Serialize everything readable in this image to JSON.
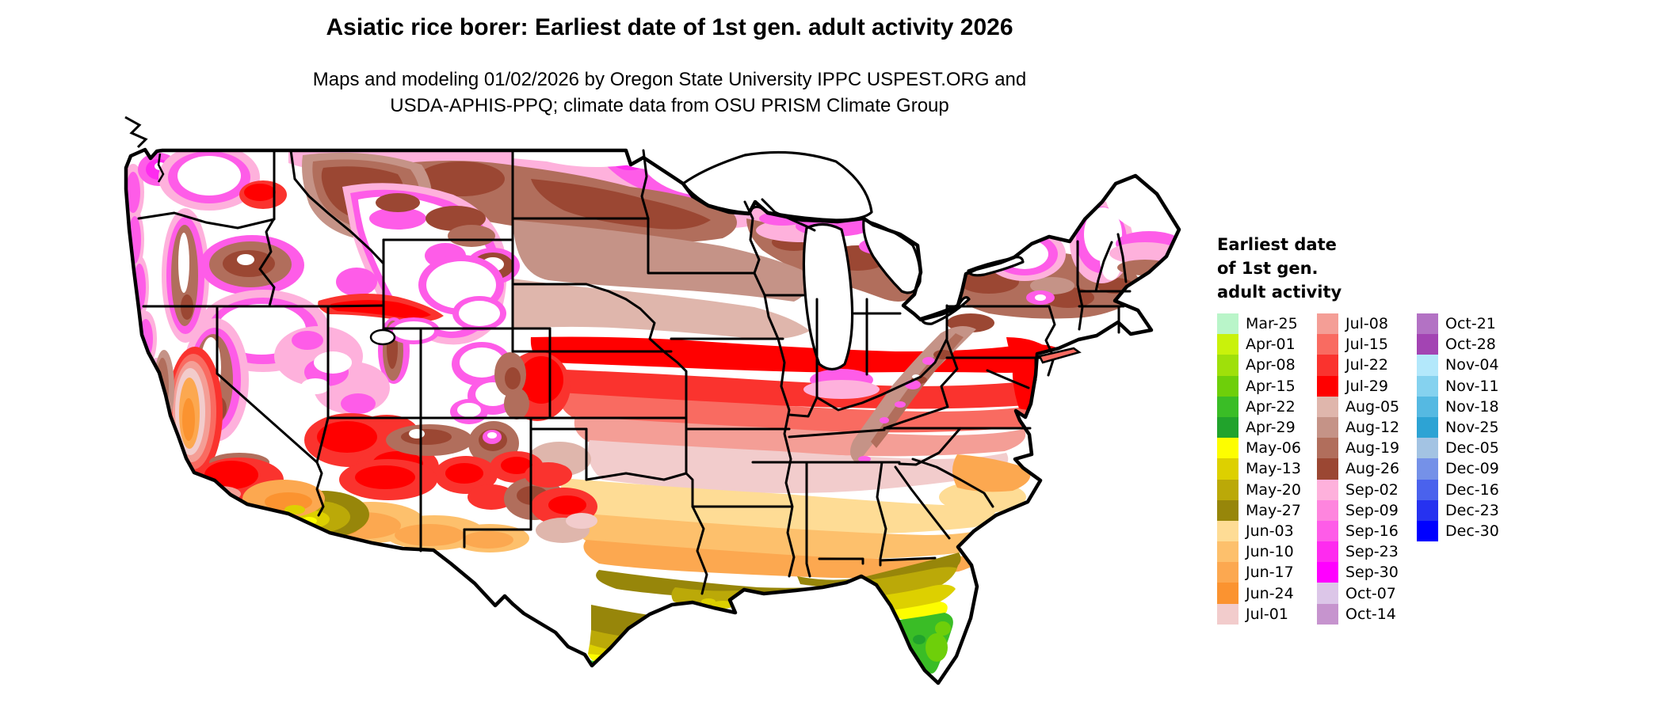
{
  "header": {
    "title": "Asiatic rice borer: Earliest date of 1st gen. adult activity 2026",
    "subtitle_line1": "Maps and modeling 01/02/2026 by Oregon State University IPPC USPEST.ORG and",
    "subtitle_line2": "USDA-APHIS-PPQ; climate data from OSU PRISM Climate Group"
  },
  "legend": {
    "title_lines": [
      "Earliest date",
      "of 1st gen.",
      "adult activity"
    ],
    "columns": [
      {
        "entries": [
          {
            "label": "Mar-25",
            "color": "#b9f5c9"
          },
          {
            "label": "Apr-01",
            "color": "#c9f20b"
          },
          {
            "label": "Apr-08",
            "color": "#9fe00a"
          },
          {
            "label": "Apr-15",
            "color": "#6ecf0a"
          },
          {
            "label": "Apr-22",
            "color": "#3abd26"
          },
          {
            "label": "Apr-29",
            "color": "#21a32c"
          },
          {
            "label": "May-06",
            "color": "#fdfd00"
          },
          {
            "label": "May-13",
            "color": "#ddd000"
          },
          {
            "label": "May-20",
            "color": "#bba908"
          },
          {
            "label": "May-27",
            "color": "#97860a"
          },
          {
            "label": "Jun-03",
            "color": "#fedc95"
          },
          {
            "label": "Jun-10",
            "color": "#fdc06c"
          },
          {
            "label": "Jun-17",
            "color": "#fca850"
          },
          {
            "label": "Jun-24",
            "color": "#fb9330"
          },
          {
            "label": "Jul-01",
            "color": "#f2cccc"
          }
        ]
      },
      {
        "entries": [
          {
            "label": "Jul-08",
            "color": "#f49e96"
          },
          {
            "label": "Jul-15",
            "color": "#f96b61"
          },
          {
            "label": "Jul-22",
            "color": "#fa332e"
          },
          {
            "label": "Jul-29",
            "color": "#ff0000"
          },
          {
            "label": "Aug-05",
            "color": "#dfb6ac"
          },
          {
            "label": "Aug-12",
            "color": "#c59387"
          },
          {
            "label": "Aug-19",
            "color": "#b16e5c"
          },
          {
            "label": "Aug-26",
            "color": "#9b4733"
          },
          {
            "label": "Sep-02",
            "color": "#feb1dc"
          },
          {
            "label": "Sep-09",
            "color": "#fe85de"
          },
          {
            "label": "Sep-16",
            "color": "#fe5ce8"
          },
          {
            "label": "Sep-23",
            "color": "#fe2bef"
          },
          {
            "label": "Sep-30",
            "color": "#ff00ff"
          },
          {
            "label": "Oct-07",
            "color": "#dcc6e8"
          },
          {
            "label": "Oct-14",
            "color": "#c694ce"
          }
        ]
      },
      {
        "entries": [
          {
            "label": "Oct-21",
            "color": "#b372c4"
          },
          {
            "label": "Oct-28",
            "color": "#a344b3"
          },
          {
            "label": "Nov-04",
            "color": "#b3e8fb"
          },
          {
            "label": "Nov-11",
            "color": "#85d2ef"
          },
          {
            "label": "Nov-18",
            "color": "#55b9e2"
          },
          {
            "label": "Nov-25",
            "color": "#2da3d4"
          },
          {
            "label": "Dec-05",
            "color": "#a3c3e3"
          },
          {
            "label": "Dec-09",
            "color": "#7591e8"
          },
          {
            "label": "Dec-16",
            "color": "#4a62ed"
          },
          {
            "label": "Dec-23",
            "color": "#2632f0"
          },
          {
            "label": "Dec-30",
            "color": "#0000ff"
          }
        ]
      }
    ]
  }
}
